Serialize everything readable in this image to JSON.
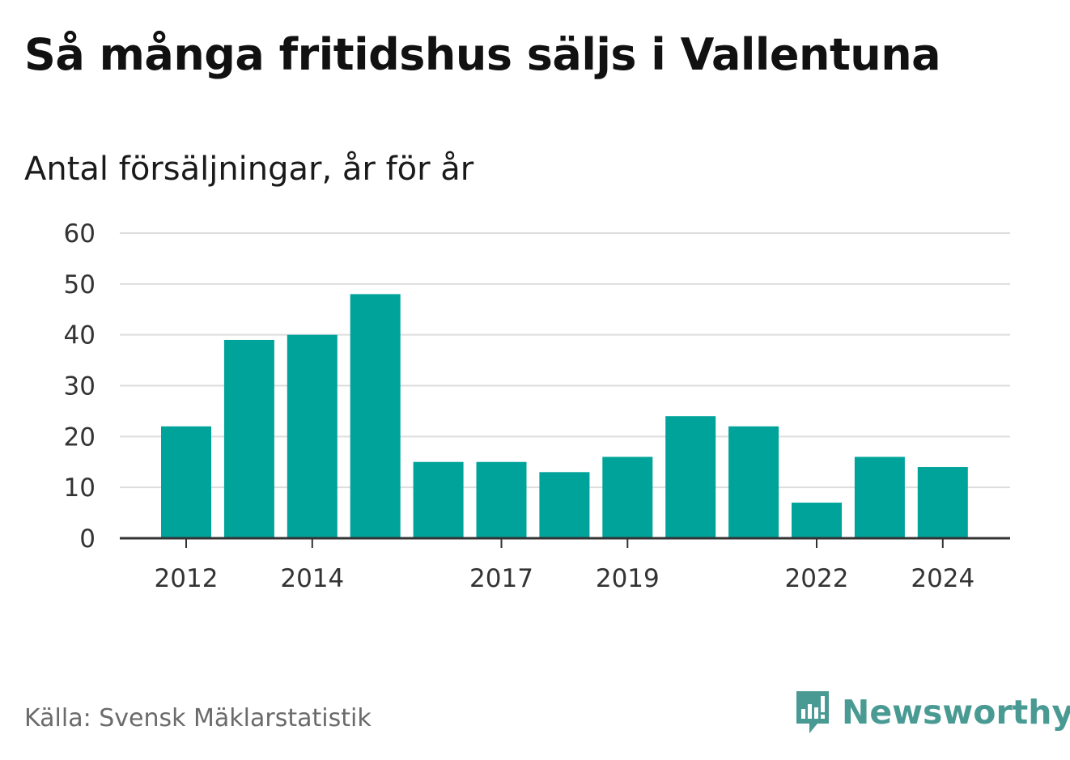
{
  "title": "Så många fritidshus säljs i Vallentuna",
  "subtitle": "Antal försäljningar, år för år",
  "source": "Källa: Svensk Mäklarstatistik",
  "brand": {
    "name": "Newsworthy",
    "color": "#4a9a94",
    "icon": "newsworthy-chart-bubble-icon"
  },
  "colors": {
    "bar": "#00a39a",
    "grid": "#dddddd",
    "axis": "#333333"
  },
  "chart_data": {
    "type": "bar",
    "categories": [
      "2012",
      "2013",
      "2014",
      "2015",
      "2016",
      "2017",
      "2018",
      "2019",
      "2020",
      "2021",
      "2022",
      "2023",
      "2024"
    ],
    "values": [
      22,
      39,
      40,
      48,
      15,
      15,
      13,
      16,
      24,
      22,
      7,
      16,
      14
    ],
    "xtick_labels": [
      "2012",
      "2014",
      "2017",
      "2019",
      "2022",
      "2024"
    ],
    "yticks": [
      0,
      10,
      20,
      30,
      40,
      50,
      60
    ],
    "ylim": [
      0,
      60
    ],
    "grid": true
  }
}
